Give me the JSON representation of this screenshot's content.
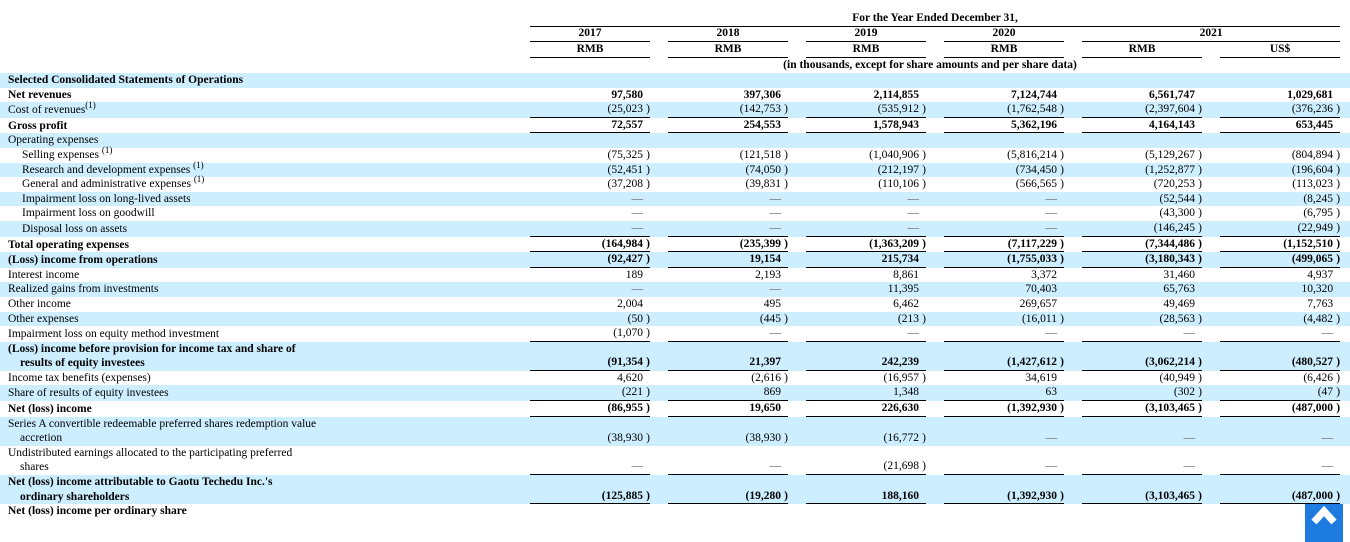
{
  "header": {
    "title": "For the Year Ended December 31,",
    "units_note": "(in thousands, except for share amounts and per share data)",
    "years": [
      "2017",
      "2018",
      "2019",
      "2020",
      "2021"
    ],
    "currencies": [
      "RMB",
      "RMB",
      "RMB",
      "RMB",
      "RMB",
      "US$"
    ]
  },
  "colors": {
    "row_highlight": "#cceeff",
    "rule_line": "#000000",
    "back_to_top_button": "#1e7be0",
    "text": "#000000"
  },
  "back_to_top": {
    "icon": "chevron-up-icon"
  },
  "rows": [
    {
      "label": "Selected Consolidated Statements of Operations",
      "bold": true,
      "shaded": true,
      "values": [
        "",
        "",
        "",
        "",
        "",
        ""
      ]
    },
    {
      "label": "Net revenues",
      "bold": true,
      "values": [
        "97,580",
        "397,306",
        "2,114,855",
        "7,124,744",
        "6,561,747",
        "1,029,681"
      ]
    },
    {
      "label": "Cost of revenues",
      "sup": "(1)",
      "shaded": true,
      "rule": true,
      "values": [
        "(25,023)",
        "(142,753)",
        "(535,912)",
        "(1,762,548)",
        "(2,397,604)",
        "(376,236)"
      ]
    },
    {
      "label": "Gross profit",
      "bold": true,
      "rule": true,
      "values": [
        "72,557",
        "254,553",
        "1,578,943",
        "5,362,196",
        "4,164,143",
        "653,445"
      ]
    },
    {
      "label": "Operating expenses",
      "shaded": true,
      "values": [
        "",
        "",
        "",
        "",
        "",
        ""
      ]
    },
    {
      "label": "Selling expenses ",
      "sup": "(1)",
      "indent": true,
      "values": [
        "(75,325)",
        "(121,518)",
        "(1,040,906)",
        "(5,816,214)",
        "(5,129,267)",
        "(804,894)"
      ]
    },
    {
      "label": "Research and development expenses ",
      "sup": "(1)",
      "indent": true,
      "shaded": true,
      "values": [
        "(52,451)",
        "(74,050)",
        "(212,197)",
        "(734,450)",
        "(1,252,877)",
        "(196,604)"
      ]
    },
    {
      "label": "General and administrative expenses ",
      "sup": "(1)",
      "indent": true,
      "values": [
        "(37,208)",
        "(39,831)",
        "(110,106)",
        "(566,565)",
        "(720,253)",
        "(113,023)"
      ]
    },
    {
      "label": "Impairment loss on long-lived assets",
      "indent": true,
      "shaded": true,
      "values": [
        "—",
        "—",
        "—",
        "—",
        "(52,544)",
        "(8,245)"
      ]
    },
    {
      "label": "Impairment loss on goodwill",
      "indent": true,
      "values": [
        "—",
        "—",
        "—",
        "—",
        "(43,300)",
        "(6,795)"
      ]
    },
    {
      "label": "Disposal loss on assets",
      "indent": true,
      "shaded": true,
      "rule": true,
      "values": [
        "—",
        "—",
        "—",
        "—",
        "(146,245)",
        "(22,949)"
      ]
    },
    {
      "label": "Total operating expenses",
      "bold": true,
      "rule": true,
      "values": [
        "(164,984)",
        "(235,399)",
        "(1,363,209)",
        "(7,117,229)",
        "(7,344,486)",
        "(1,152,510)"
      ]
    },
    {
      "label": "(Loss) income from operations",
      "bold": true,
      "shaded": true,
      "rule": true,
      "values": [
        "(92,427)",
        "19,154",
        "215,734",
        "(1,755,033)",
        "(3,180,343)",
        "(499,065)"
      ]
    },
    {
      "label": "Interest income",
      "values": [
        "189",
        "2,193",
        "8,861",
        "3,372",
        "31,460",
        "4,937"
      ]
    },
    {
      "label": "Realized gains from investments",
      "shaded": true,
      "values": [
        "—",
        "—",
        "11,395",
        "70,403",
        "65,763",
        "10,320"
      ]
    },
    {
      "label": "Other income",
      "values": [
        "2,004",
        "495",
        "6,462",
        "269,657",
        "49,469",
        "7,763"
      ]
    },
    {
      "label": "Other expenses",
      "shaded": true,
      "values": [
        "(50)",
        "(445)",
        "(213)",
        "(16,011)",
        "(28,563)",
        "(4,482)"
      ]
    },
    {
      "label": "Impairment loss on equity method investment",
      "rule": true,
      "values": [
        "(1,070)",
        "—",
        "—",
        "—",
        "—",
        "—"
      ]
    },
    {
      "label": "(Loss) income before provision for income tax and share of",
      "label2": "results of equity investees",
      "bold": true,
      "shaded": true,
      "rule": true,
      "values": [
        "(91,354)",
        "21,397",
        "242,239",
        "(1,427,612)",
        "(3,062,214)",
        "(480,527)"
      ]
    },
    {
      "label": "Income tax benefits (expenses)",
      "values": [
        "4,620",
        "(2,616)",
        "(16,957)",
        "34,619",
        "(40,949)",
        "(6,426)"
      ]
    },
    {
      "label": "Share of results of equity investees",
      "shaded": true,
      "rule": true,
      "values": [
        "(221)",
        "869",
        "1,348",
        "63",
        "(302)",
        "(47)"
      ]
    },
    {
      "label": "Net (loss) income",
      "bold": true,
      "rule": true,
      "values": [
        "(86,955)",
        "19,650",
        "226,630",
        "(1,392,930)",
        "(3,103,465)",
        "(487,000)"
      ]
    },
    {
      "label": "Series A convertible redeemable preferred shares redemption value",
      "label2": "accretion",
      "shaded": true,
      "values": [
        "(38,930)",
        "(38,930)",
        "(16,772)",
        "—",
        "—",
        "—"
      ]
    },
    {
      "label": "Undistributed earnings allocated to the participating preferred",
      "label2": "shares",
      "rule": true,
      "values": [
        "—",
        "—",
        "(21,698)",
        "—",
        "—",
        "—"
      ]
    },
    {
      "label": "Net (loss) income attributable to Gaotu Techedu Inc.'s",
      "label2": "ordinary shareholders",
      "bold": true,
      "shaded": true,
      "rule": true,
      "values": [
        "(125,885)",
        "(19,280)",
        "188,160",
        "(1,392,930)",
        "(3,103,465)",
        "(487,000)"
      ]
    },
    {
      "label": "Net (loss) income per ordinary share",
      "bold": true,
      "values": [
        "",
        "",
        "",
        "",
        "",
        ""
      ]
    }
  ]
}
